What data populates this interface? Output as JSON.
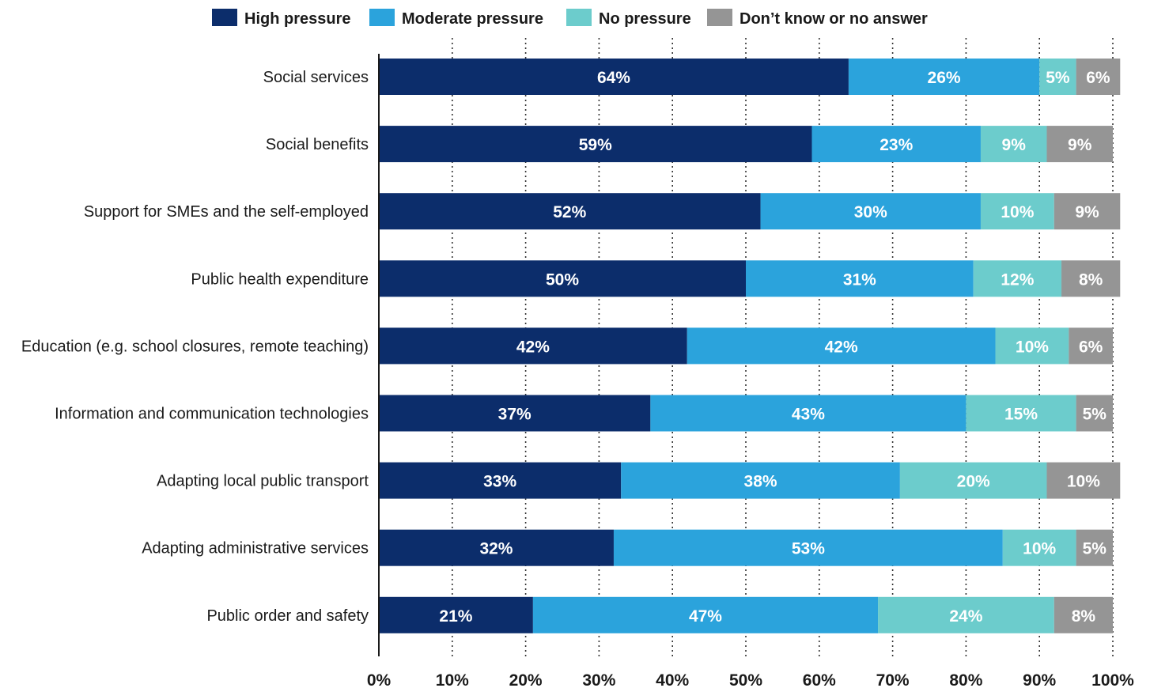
{
  "chart_data": {
    "type": "bar",
    "orientation": "horizontal",
    "stacked": true,
    "categories": [
      "Social services",
      "Social benefits",
      "Support for SMEs and the self-employed",
      "Public health expenditure",
      "Education (e.g. school closures, remote teaching)",
      "Information and communication technologies",
      "Adapting local public transport",
      "Adapting administrative services",
      "Public order and safety"
    ],
    "series": [
      {
        "name": "High pressure",
        "color": "#0c2d6b",
        "values": [
          64,
          59,
          52,
          50,
          42,
          37,
          33,
          32,
          21
        ]
      },
      {
        "name": "Moderate pressure",
        "color": "#2ba3dc",
        "values": [
          26,
          23,
          30,
          31,
          42,
          43,
          38,
          53,
          47
        ]
      },
      {
        "name": "No pressure",
        "color": "#6ccccc",
        "values": [
          5,
          9,
          10,
          12,
          10,
          15,
          20,
          10,
          24
        ]
      },
      {
        "name": "Don’t know or no answer",
        "color": "#959595",
        "values": [
          6,
          9,
          9,
          8,
          6,
          5,
          10,
          5,
          8
        ]
      }
    ],
    "xlim": [
      0,
      100
    ],
    "x_ticks": [
      "0%",
      "10%",
      "20%",
      "30%",
      "40%",
      "50%",
      "60%",
      "70%",
      "80%",
      "90%",
      "100%"
    ],
    "value_suffix": "%",
    "grid": "vertical dotted",
    "legend_position": "top"
  }
}
